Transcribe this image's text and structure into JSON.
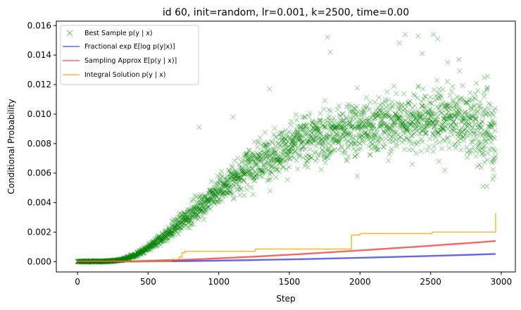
{
  "chart_data": {
    "type": "scatter",
    "title": "id 60, init=random, lr=0.001, k=2500, time=0.00",
    "xlabel": "Step",
    "ylabel": "Conditional Probability",
    "xlim": [
      -150,
      3100
    ],
    "ylim": [
      -0.0007,
      0.0163
    ],
    "x_ticks": [
      0,
      500,
      1000,
      1500,
      2000,
      2500,
      3000
    ],
    "y_ticks": [
      0.0,
      0.002,
      0.004,
      0.006,
      0.008,
      0.01,
      0.012,
      0.014,
      0.016
    ],
    "x_tick_labels": [
      "0",
      "500",
      "1000",
      "1500",
      "2000",
      "2500",
      "3000"
    ],
    "y_tick_labels": [
      "0.000",
      "0.002",
      "0.004",
      "0.006",
      "0.008",
      "0.010",
      "0.012",
      "0.014",
      "0.016"
    ],
    "grid": false,
    "legend_position": "top-left",
    "series": [
      {
        "name": "Best Sample p(y | x)",
        "kind": "scatter",
        "marker": "x",
        "color": "#008000",
        "trend": {
          "x": [
            0,
            200,
            300,
            400,
            500,
            600,
            700,
            800,
            900,
            1000,
            1200,
            1400,
            1600,
            1800,
            2000,
            2200,
            2400,
            2600,
            2800,
            2960
          ],
          "y": [
            0.0,
            2e-05,
            0.0001,
            0.0004,
            0.0009,
            0.0016,
            0.0024,
            0.0032,
            0.004,
            0.0048,
            0.0063,
            0.0074,
            0.0082,
            0.0087,
            0.0091,
            0.0094,
            0.0096,
            0.0097,
            0.0094,
            0.0085
          ]
        },
        "outliers": [
          {
            "x": 1770,
            "y": 0.0152
          },
          {
            "x": 1790,
            "y": 0.0142
          },
          {
            "x": 2320,
            "y": 0.0154
          },
          {
            "x": 2410,
            "y": 0.0153
          },
          {
            "x": 2520,
            "y": 0.0154
          },
          {
            "x": 2550,
            "y": 0.0151
          },
          {
            "x": 2280,
            "y": 0.0148
          },
          {
            "x": 2700,
            "y": 0.0137
          },
          {
            "x": 2620,
            "y": 0.0135
          },
          {
            "x": 1360,
            "y": 0.0117
          },
          {
            "x": 1100,
            "y": 0.0098
          },
          {
            "x": 860,
            "y": 0.0091
          },
          {
            "x": 2600,
            "y": 0.0062
          },
          {
            "x": 2370,
            "y": 0.0066
          },
          {
            "x": 2950,
            "y": 0.0058
          },
          {
            "x": 1980,
            "y": 0.0058
          },
          {
            "x": 2880,
            "y": 0.0112
          },
          {
            "x": 2440,
            "y": 0.0141
          }
        ]
      },
      {
        "name": "Fractional exp E[log p(y|x)]",
        "kind": "line",
        "color": "#0000dd",
        "x": [
          0,
          400,
          800,
          1200,
          1600,
          2000,
          2400,
          2800,
          2960
        ],
        "y": [
          0.0,
          1e-05,
          4e-05,
          0.0001,
          0.00017,
          0.00026,
          0.00036,
          0.00047,
          0.00052
        ]
      },
      {
        "name": "Sampling Approx E[p(y | x)]",
        "kind": "line",
        "color": "#ee0000",
        "x": [
          0,
          400,
          800,
          1200,
          1600,
          2000,
          2400,
          2800,
          2960
        ],
        "y": [
          0.0,
          3e-05,
          0.00014,
          0.00031,
          0.00052,
          0.00076,
          0.00101,
          0.00128,
          0.0014
        ]
      },
      {
        "name": "Integral Solution p(y | x)",
        "kind": "step",
        "color": "#ffa500",
        "x": [
          0,
          640,
          660,
          720,
          740,
          760,
          1240,
          1260,
          1920,
          1940,
          2000,
          2510,
          2960
        ],
        "y": [
          3e-05,
          3e-05,
          0.00015,
          0.0003,
          0.0006,
          0.0007,
          0.0007,
          0.00085,
          0.00085,
          0.0018,
          0.0019,
          0.002,
          0.0033
        ]
      }
    ]
  }
}
